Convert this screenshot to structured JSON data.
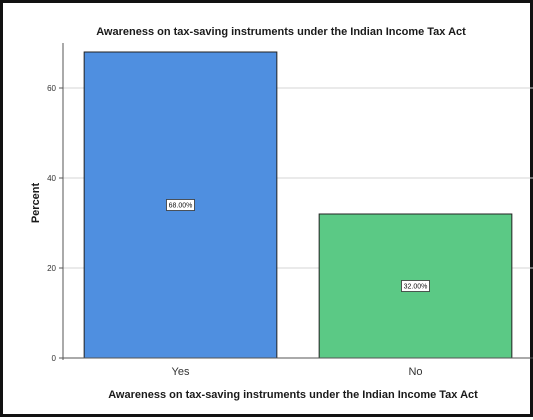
{
  "chart_data": {
    "type": "bar",
    "title": "Awareness on tax-saving instruments under the Indian Income Tax Act",
    "xlabel": "Awareness on tax-saving instruments under the Indian Income Tax Act",
    "ylabel": "Percent",
    "categories": [
      "Yes",
      "No"
    ],
    "values": [
      68,
      32
    ],
    "data_labels": [
      "68.00%",
      "32.00%"
    ],
    "colors": [
      "#4f8fe0",
      "#5bc985"
    ],
    "ylim": [
      0,
      70
    ],
    "yticks": [
      0,
      20,
      40,
      60
    ],
    "grid": true
  }
}
